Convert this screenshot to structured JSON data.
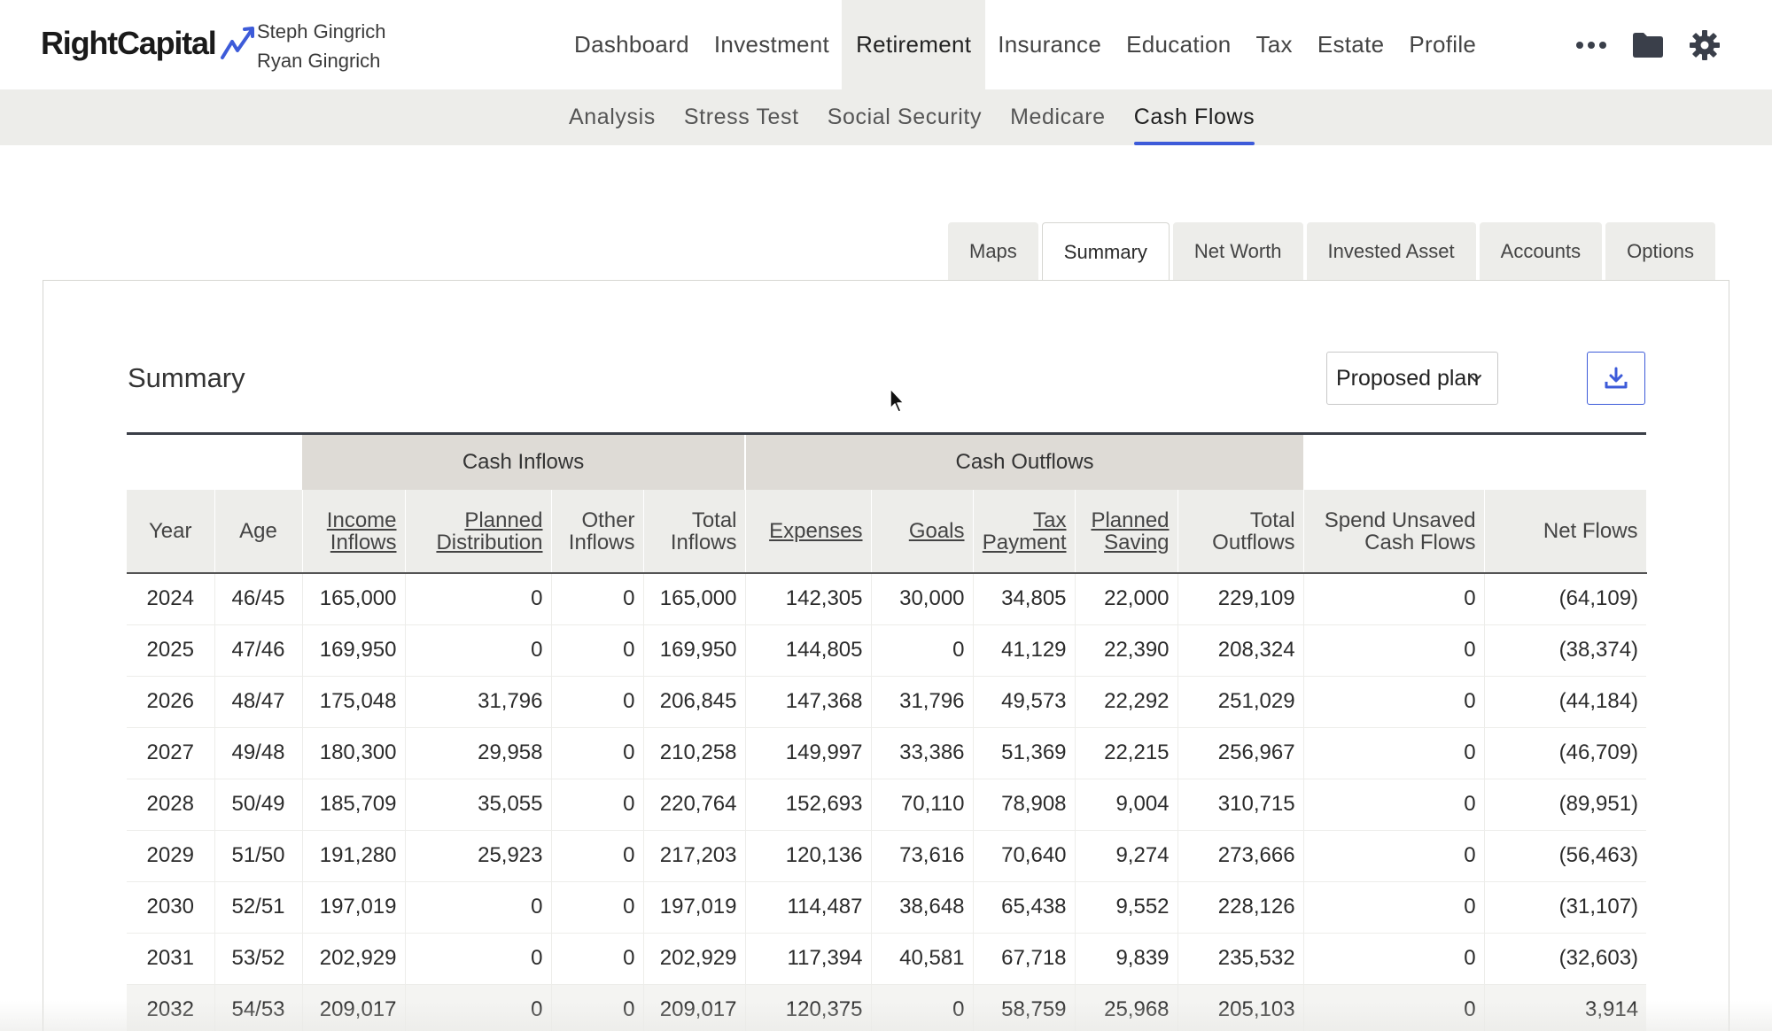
{
  "header": {
    "logo": "RightCapital",
    "clients": [
      "Steph Gingrich",
      "Ryan Gingrich"
    ],
    "nav": [
      {
        "label": "Dashboard",
        "active": false
      },
      {
        "label": "Investment",
        "active": false
      },
      {
        "label": "Retirement",
        "active": true
      },
      {
        "label": "Insurance",
        "active": false
      },
      {
        "label": "Education",
        "active": false
      },
      {
        "label": "Tax",
        "active": false
      },
      {
        "label": "Estate",
        "active": false
      },
      {
        "label": "Profile",
        "active": false
      }
    ],
    "icons": [
      "more-icon",
      "folder-icon",
      "gear-icon"
    ]
  },
  "subnav": [
    {
      "label": "Analysis",
      "active": false
    },
    {
      "label": "Stress Test",
      "active": false
    },
    {
      "label": "Social Security",
      "active": false
    },
    {
      "label": "Medicare",
      "active": false
    },
    {
      "label": "Cash Flows",
      "active": true
    }
  ],
  "tabs": [
    {
      "label": "Maps",
      "active": false
    },
    {
      "label": "Summary",
      "active": true
    },
    {
      "label": "Net Worth",
      "active": false
    },
    {
      "label": "Invested Asset",
      "active": false
    },
    {
      "label": "Accounts",
      "active": false
    },
    {
      "label": "Options",
      "active": false
    }
  ],
  "panel": {
    "title": "Summary",
    "plan_select": {
      "value": "Proposed plan"
    },
    "download_icon": "download-icon"
  },
  "table": {
    "groups": {
      "inflows": "Cash Inflows",
      "outflows": "Cash Outflows"
    },
    "columns": [
      {
        "label": "Year",
        "link": false
      },
      {
        "label": "Age",
        "link": false
      },
      {
        "label": "Income Inflows",
        "link": true
      },
      {
        "label": "Planned Distribution",
        "link": true
      },
      {
        "label": "Other Inflows",
        "link": false
      },
      {
        "label": "Total Inflows",
        "link": false
      },
      {
        "label": "Expenses",
        "link": true
      },
      {
        "label": "Goals",
        "link": true
      },
      {
        "label": "Tax Payment",
        "link": true
      },
      {
        "label": "Planned Saving",
        "link": true
      },
      {
        "label": "Total Outflows",
        "link": false
      },
      {
        "label": "Spend Unsaved Cash Flows",
        "link": false
      },
      {
        "label": "Net Flows",
        "link": false
      }
    ],
    "rows": [
      [
        "2024",
        "46/45",
        "165,000",
        "0",
        "0",
        "165,000",
        "142,305",
        "30,000",
        "34,805",
        "22,000",
        "229,109",
        "0",
        "(64,109)"
      ],
      [
        "2025",
        "47/46",
        "169,950",
        "0",
        "0",
        "169,950",
        "144,805",
        "0",
        "41,129",
        "22,390",
        "208,324",
        "0",
        "(38,374)"
      ],
      [
        "2026",
        "48/47",
        "175,048",
        "31,796",
        "0",
        "206,845",
        "147,368",
        "31,796",
        "49,573",
        "22,292",
        "251,029",
        "0",
        "(44,184)"
      ],
      [
        "2027",
        "49/48",
        "180,300",
        "29,958",
        "0",
        "210,258",
        "149,997",
        "33,386",
        "51,369",
        "22,215",
        "256,967",
        "0",
        "(46,709)"
      ],
      [
        "2028",
        "50/49",
        "185,709",
        "35,055",
        "0",
        "220,764",
        "152,693",
        "70,110",
        "78,908",
        "9,004",
        "310,715",
        "0",
        "(89,951)"
      ],
      [
        "2029",
        "51/50",
        "191,280",
        "25,923",
        "0",
        "217,203",
        "120,136",
        "73,616",
        "70,640",
        "9,274",
        "273,666",
        "0",
        "(56,463)"
      ],
      [
        "2030",
        "52/51",
        "197,019",
        "0",
        "0",
        "197,019",
        "114,487",
        "38,648",
        "65,438",
        "9,552",
        "228,126",
        "0",
        "(31,107)"
      ],
      [
        "2031",
        "53/52",
        "202,929",
        "0",
        "0",
        "202,929",
        "117,394",
        "40,581",
        "67,718",
        "9,839",
        "235,532",
        "0",
        "(32,603)"
      ],
      [
        "2032",
        "54/53",
        "209,017",
        "0",
        "0",
        "209,017",
        "120,375",
        "0",
        "58,759",
        "25,968",
        "205,103",
        "0",
        "3,914"
      ]
    ]
  }
}
